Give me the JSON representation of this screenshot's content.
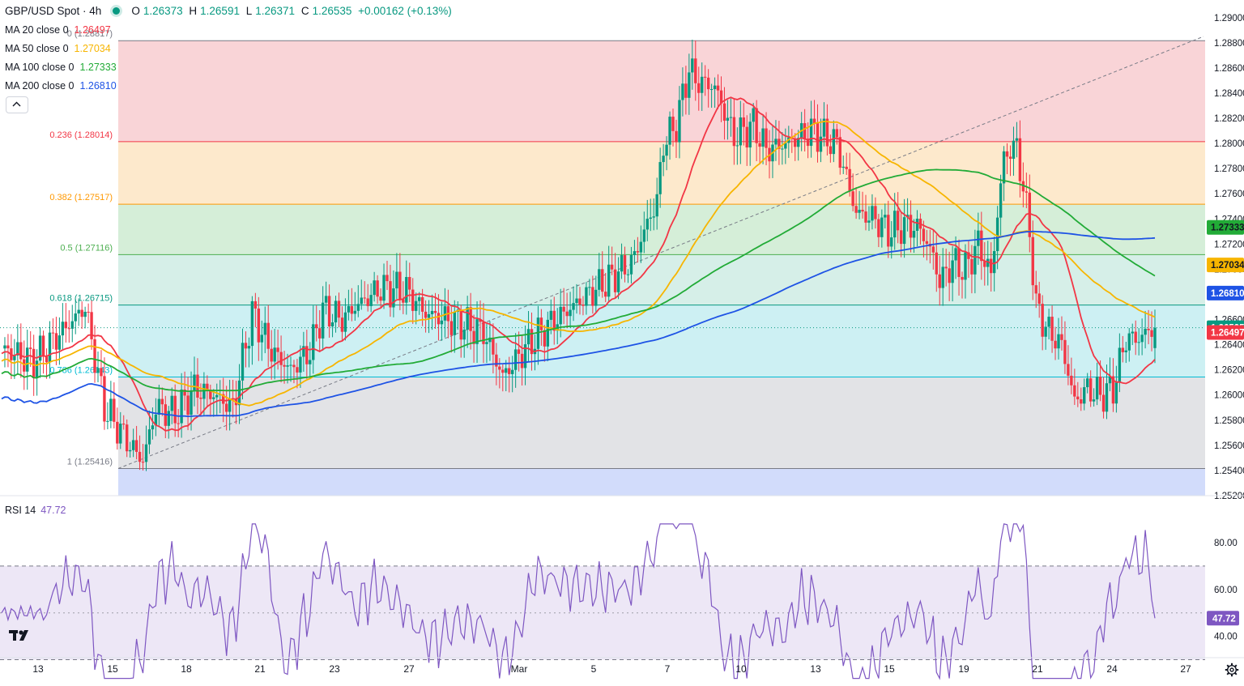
{
  "header": {
    "title": "GBP/USD Spot · 4h",
    "o_label": "O",
    "o_value": "1.26373",
    "h_label": "H",
    "h_value": "1.26591",
    "l_label": "L",
    "l_value": "1.26371",
    "c_label": "C",
    "c_value": "1.26535",
    "change": "+0.00162 (+0.13%)"
  },
  "legend": [
    {
      "label": "MA 20 close 0",
      "value": "1.26497",
      "color": "#f23645"
    },
    {
      "label": "MA 50 close 0",
      "value": "1.27034",
      "color": "#f7b500"
    },
    {
      "label": "MA 100 close 0",
      "value": "1.27333",
      "color": "#22ab37"
    },
    {
      "label": "MA 200 close 0",
      "value": "1.26810",
      "color": "#1e53e5"
    }
  ],
  "rsi": {
    "label": "RSI 14",
    "value": "47.72"
  },
  "icons": {
    "collapse": "chevron-up-icon",
    "logo": "tradingview-logo",
    "settings": "gear-icon"
  },
  "chart_data": {
    "type": "candlestick",
    "price_axis": {
      "range": [
        1.252,
        1.2905
      ],
      "ticks": [
        "1.29000",
        "1.28800",
        "1.28600",
        "1.28400",
        "1.28200",
        "1.28000",
        "1.27800",
        "1.27600",
        "1.27400",
        "1.27200",
        "1.27000",
        "1.26800",
        "1.26600",
        "1.26400",
        "1.26200",
        "1.26000",
        "1.25800",
        "1.25600",
        "1.25400",
        "1.25200"
      ]
    },
    "time_axis": {
      "ticks": [
        "13",
        "15",
        "18",
        "21",
        "23",
        "27",
        "Mar",
        "5",
        "7",
        "10",
        "13",
        "15",
        "19",
        "21",
        "24",
        "27"
      ]
    },
    "last_price": "1.26535",
    "price_badges": [
      {
        "value": "1.27333",
        "color": "#22ab37",
        "text_color": "#131722"
      },
      {
        "value": "1.27034",
        "color": "#f7b500",
        "text_color": "#131722"
      },
      {
        "value": "1.26810",
        "color": "#1e53e5",
        "text_color": "#ffffff"
      },
      {
        "value": "1.26535",
        "color": "#089981",
        "text_color": "#ffffff"
      },
      {
        "value": "1.26497",
        "color": "#f23645",
        "text_color": "#ffffff"
      }
    ],
    "fibonacci": {
      "high": 1.28817,
      "low": 1.25416,
      "levels": [
        {
          "ratio": "0",
          "label": "0 (1.28817)",
          "price": 1.28817,
          "color": "#787b86"
        },
        {
          "ratio": "0.236",
          "label": "0.236 (1.28014)",
          "price": 1.28014,
          "color": "#f23645"
        },
        {
          "ratio": "0.382",
          "label": "0.382 (1.27517)",
          "price": 1.27517,
          "color": "#ff9800"
        },
        {
          "ratio": "0.5",
          "label": "0.5 (1.27116)",
          "price": 1.27116,
          "color": "#4caf50"
        },
        {
          "ratio": "0.618",
          "label": "0.618 (1.26715)",
          "price": 1.26715,
          "color": "#089981"
        },
        {
          "ratio": "0.786",
          "label": "0.786 (1.26143)",
          "price": 1.26143,
          "color": "#00bcd4"
        },
        {
          "ratio": "1",
          "label": "1 (1.25416)",
          "price": 1.25416,
          "color": "#787b86"
        }
      ],
      "zones": [
        "#f9d4d7",
        "#fde9cc",
        "#d5eed8",
        "#d6efe8",
        "#cdf0f3",
        "#e2e3e6",
        "#d2dcfb"
      ]
    },
    "series": [
      {
        "name": "MA 20 close 0",
        "color": "#f23645"
      },
      {
        "name": "MA 50 close 0",
        "color": "#f7b500"
      },
      {
        "name": "MA 100 close 0",
        "color": "#22ab37"
      },
      {
        "name": "MA 200 close 0",
        "color": "#1e53e5"
      }
    ],
    "rsi_axis": {
      "ticks": [
        "80.00",
        "60.00",
        "40.00"
      ],
      "upper": 70,
      "middle": 50,
      "lower": 30,
      "value": 47.72
    },
    "up_color": "#089981",
    "down_color": "#f23645"
  }
}
